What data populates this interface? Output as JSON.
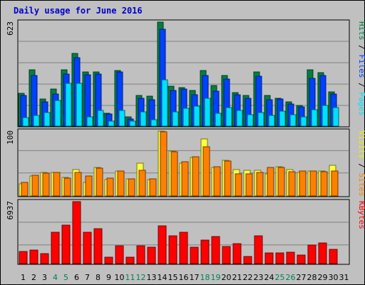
{
  "chart_data": {
    "type": "bar",
    "title": "Daily usage for June 2016",
    "days": [
      "1",
      "2",
      "3",
      "4",
      "5",
      "6",
      "7",
      "8",
      "9",
      "10",
      "11",
      "12",
      "13",
      "14",
      "15",
      "16",
      "17",
      "18",
      "19",
      "20",
      "21",
      "22",
      "23",
      "24",
      "25",
      "26",
      "27",
      "28",
      "29",
      "30",
      "31"
    ],
    "weekend_days": [
      4,
      5,
      11,
      12,
      18,
      19,
      25,
      26
    ],
    "panels": [
      {
        "id": "hits_files_pages",
        "ymax": 623,
        "ymax_label": "623",
        "axis_labels": [
          {
            "text": "Hits",
            "color": "#008040"
          },
          {
            "text": "Files",
            "color": "#0040ff"
          },
          {
            "text": "Pages",
            "color": "#00e0ff"
          }
        ],
        "separator": " / ",
        "series": [
          {
            "name": "Hits",
            "color": "#008040",
            "values": [
              195,
              336,
              164,
              222,
              336,
              436,
              325,
              325,
              75,
              334,
              57,
              183,
              178,
              623,
              237,
              230,
              212,
              334,
              245,
              303,
              199,
              185,
              323,
              185,
              168,
              147,
              124,
              336,
              321,
              206,
              0
            ]
          },
          {
            "name": "Files",
            "color": "#0040ff",
            "values": [
              182,
              304,
              144,
              191,
              311,
              410,
              307,
              313,
              72,
              325,
              42,
              168,
              158,
              582,
              215,
              221,
              188,
              302,
              208,
              280,
              187,
              165,
              298,
              158,
              161,
              133,
              114,
              284,
              302,
              192,
              0
            ]
          },
          {
            "name": "Pages",
            "color": "#00e0ff",
            "values": [
              53,
              64,
              80,
              155,
              258,
              255,
              56,
              94,
              30,
              94,
              31,
              87,
              37,
              279,
              85,
              107,
              120,
              168,
              77,
              111,
              95,
              67,
              79,
              63,
              89,
              70,
              56,
              100,
              124,
              110,
              0
            ]
          }
        ]
      },
      {
        "id": "visits_sites",
        "ymax": 100,
        "ymax_label": "100",
        "axis_labels": [
          {
            "text": "Visits",
            "color": "#f0f000"
          },
          {
            "text": "Sites",
            "color": "#ff8000"
          }
        ],
        "separator": " / ",
        "series": [
          {
            "name": "Visits",
            "color": "#ffff40",
            "values": [
              19,
              31,
              36,
              36,
              29,
              41,
              21,
              44,
              25,
              38,
              26,
              51,
              25,
              100,
              69,
              51,
              59,
              88,
              44,
              55,
              41,
              40,
              40,
              34,
              45,
              41,
              36,
              38,
              38,
              47,
              0
            ]
          },
          {
            "name": "Sites",
            "color": "#ff8000",
            "values": [
              21,
              32,
              35,
              36,
              27,
              36,
              31,
              43,
              27,
              38,
              26,
              40,
              26,
              99,
              68,
              53,
              60,
              76,
              45,
              54,
              34,
              34,
              36,
              44,
              44,
              37,
              38,
              38,
              37,
              39,
              0
            ]
          }
        ]
      },
      {
        "id": "kbytes",
        "ymax": 6937,
        "ymax_label": "6937",
        "axis_labels": [
          {
            "text": "KBytes",
            "color": "#ff0000"
          }
        ],
        "separator": "",
        "series": [
          {
            "name": "KBytes",
            "color": "#ff0000",
            "values": [
              1360,
              1544,
              1081,
              3497,
              4343,
              6937,
              3474,
              3885,
              740,
              1988,
              700,
              1961,
              1836,
              4237,
              3078,
              3491,
              1863,
              2625,
              2996,
              1944,
              2234,
              798,
              3116,
              1163,
              1208,
              1238,
              961,
              2085,
              2346,
              1600,
              0
            ]
          }
        ]
      }
    ]
  }
}
